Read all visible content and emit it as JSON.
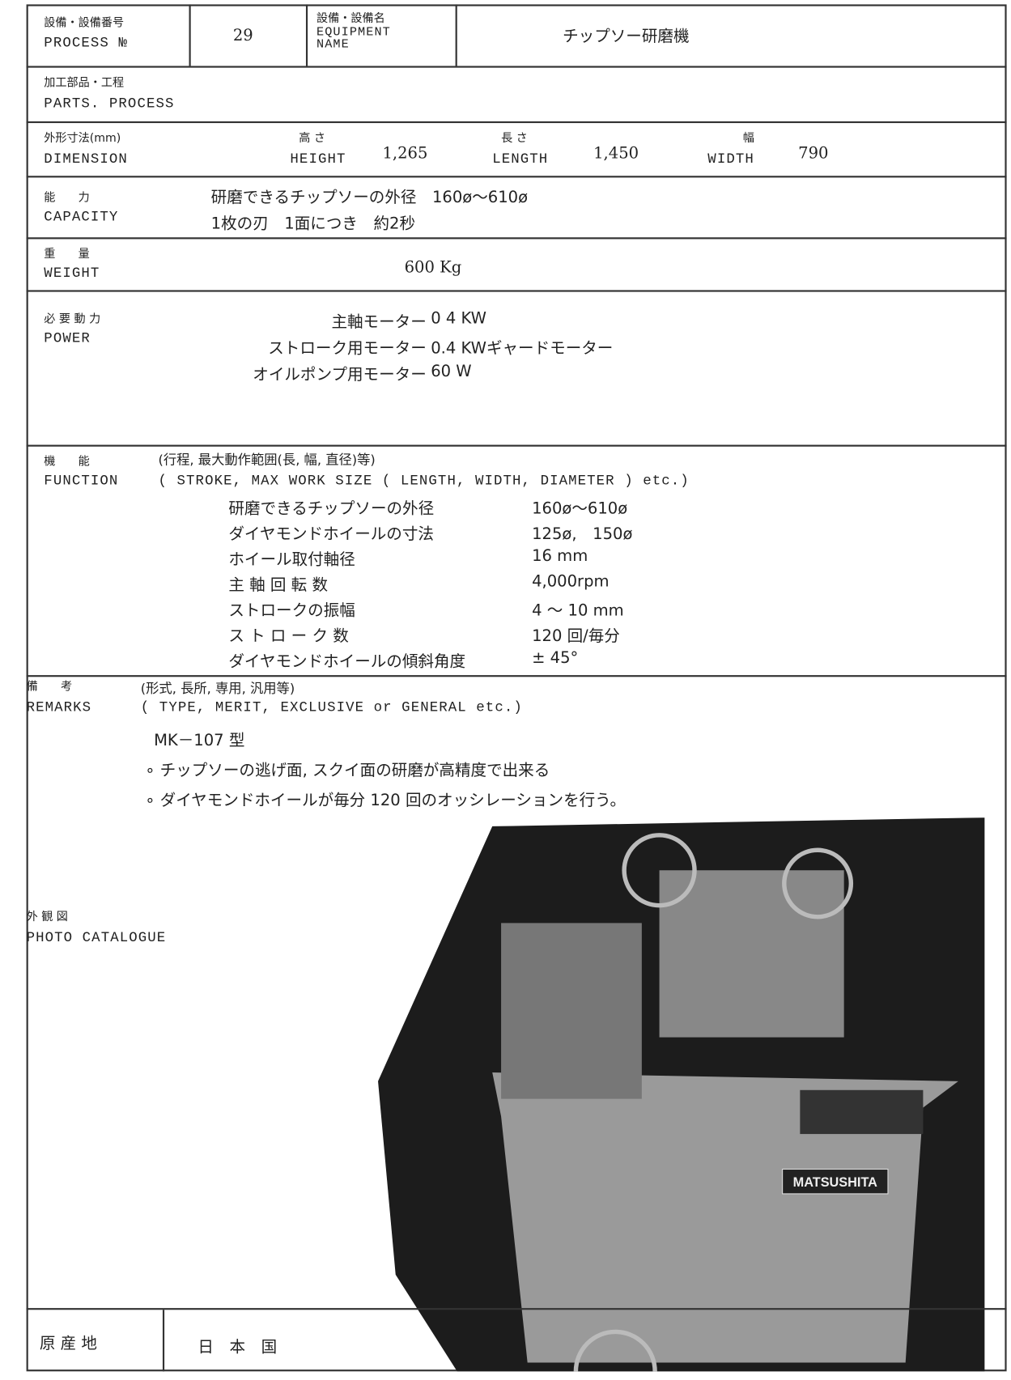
{
  "header": {
    "process_no_label_ja": "設備・設備番号",
    "process_no_label_en": "PROCESS №",
    "process_no": "29",
    "equipment_label_ja": "設備・設備名",
    "equipment_label_en": "EQUIPMENT NAME",
    "equipment_name": "チップソー研磨機"
  },
  "parts_process": {
    "label_ja": "加工部品・工程",
    "label_en": "PARTS. PROCESS"
  },
  "dimension": {
    "label_ja": "外形寸法(mm)",
    "label_en": "DIMENSION",
    "height_label_ja": "高 さ",
    "height_label_en": "HEIGHT",
    "height": "1,265",
    "length_label_ja": "長 さ",
    "length_label_en": "LENGTH",
    "length": "1,450",
    "width_label_ja": "幅",
    "width_label_en": "WIDTH",
    "width": "790"
  },
  "capacity": {
    "label_ja": "能　　力",
    "label_en": "CAPACITY",
    "lines": [
      "研磨できるチップソーの外径　160ø〜610ø",
      "1枚の刃　1面につき　約2秒"
    ]
  },
  "weight": {
    "label_ja": "重　　量",
    "label_en": "WEIGHT",
    "value": "600 Kg"
  },
  "power": {
    "label_ja": "必 要 動 力",
    "label_en": "POWER",
    "rows": [
      [
        "主軸モーター",
        "0 4 KW"
      ],
      [
        "ストローク用モーター",
        "0.4 KWギャードモーター"
      ],
      [
        "オイルポンプ用モーター",
        "60 W"
      ]
    ]
  },
  "function": {
    "label_ja": "機　　能",
    "label_en": "FUNCTION",
    "hint_ja": "(行程, 最大動作範囲(長, 幅, 直径)等)",
    "hint_en": "( STROKE, MAX WORK SIZE ( LENGTH, WIDTH, DIAMETER ) etc.)",
    "rows": [
      [
        "研磨できるチップソーの外径",
        "160ø〜610ø"
      ],
      [
        "ダイヤモンドホイールの寸法",
        "125ø,　150ø"
      ],
      [
        "ホイール取付軸径",
        "16 mm"
      ],
      [
        "主 軸 回 転 数",
        "4,000rpm"
      ],
      [
        "ストロークの振幅",
        "4 〜 10 mm"
      ],
      [
        "ス ト ロ ー ク 数",
        "120 回/毎分"
      ],
      [
        "ダイヤモンドホイールの傾斜角度",
        "± 45°"
      ]
    ]
  },
  "remarks": {
    "label_ja": "備　　考",
    "label_en": "REMARKS",
    "hint_ja": "(形式, 長所, 専用, 汎用等)",
    "hint_en": "( TYPE, MERIT, EXCLUSIVE or GENERAL etc.)",
    "lines": [
      "MK－107 型",
      "∘ チップソーの逃げ面, スクイ面の研磨が高精度で出来る",
      "∘ ダイヤモンドホイールが毎分 120 回のオッシレーションを行う。"
    ]
  },
  "photo": {
    "label_ja": "外 観 図",
    "label_en": "PHOTO CATALOGUE",
    "brand": "MATSUSHITA"
  },
  "origin": {
    "label": "原 産 地",
    "value": "日　本　国"
  }
}
